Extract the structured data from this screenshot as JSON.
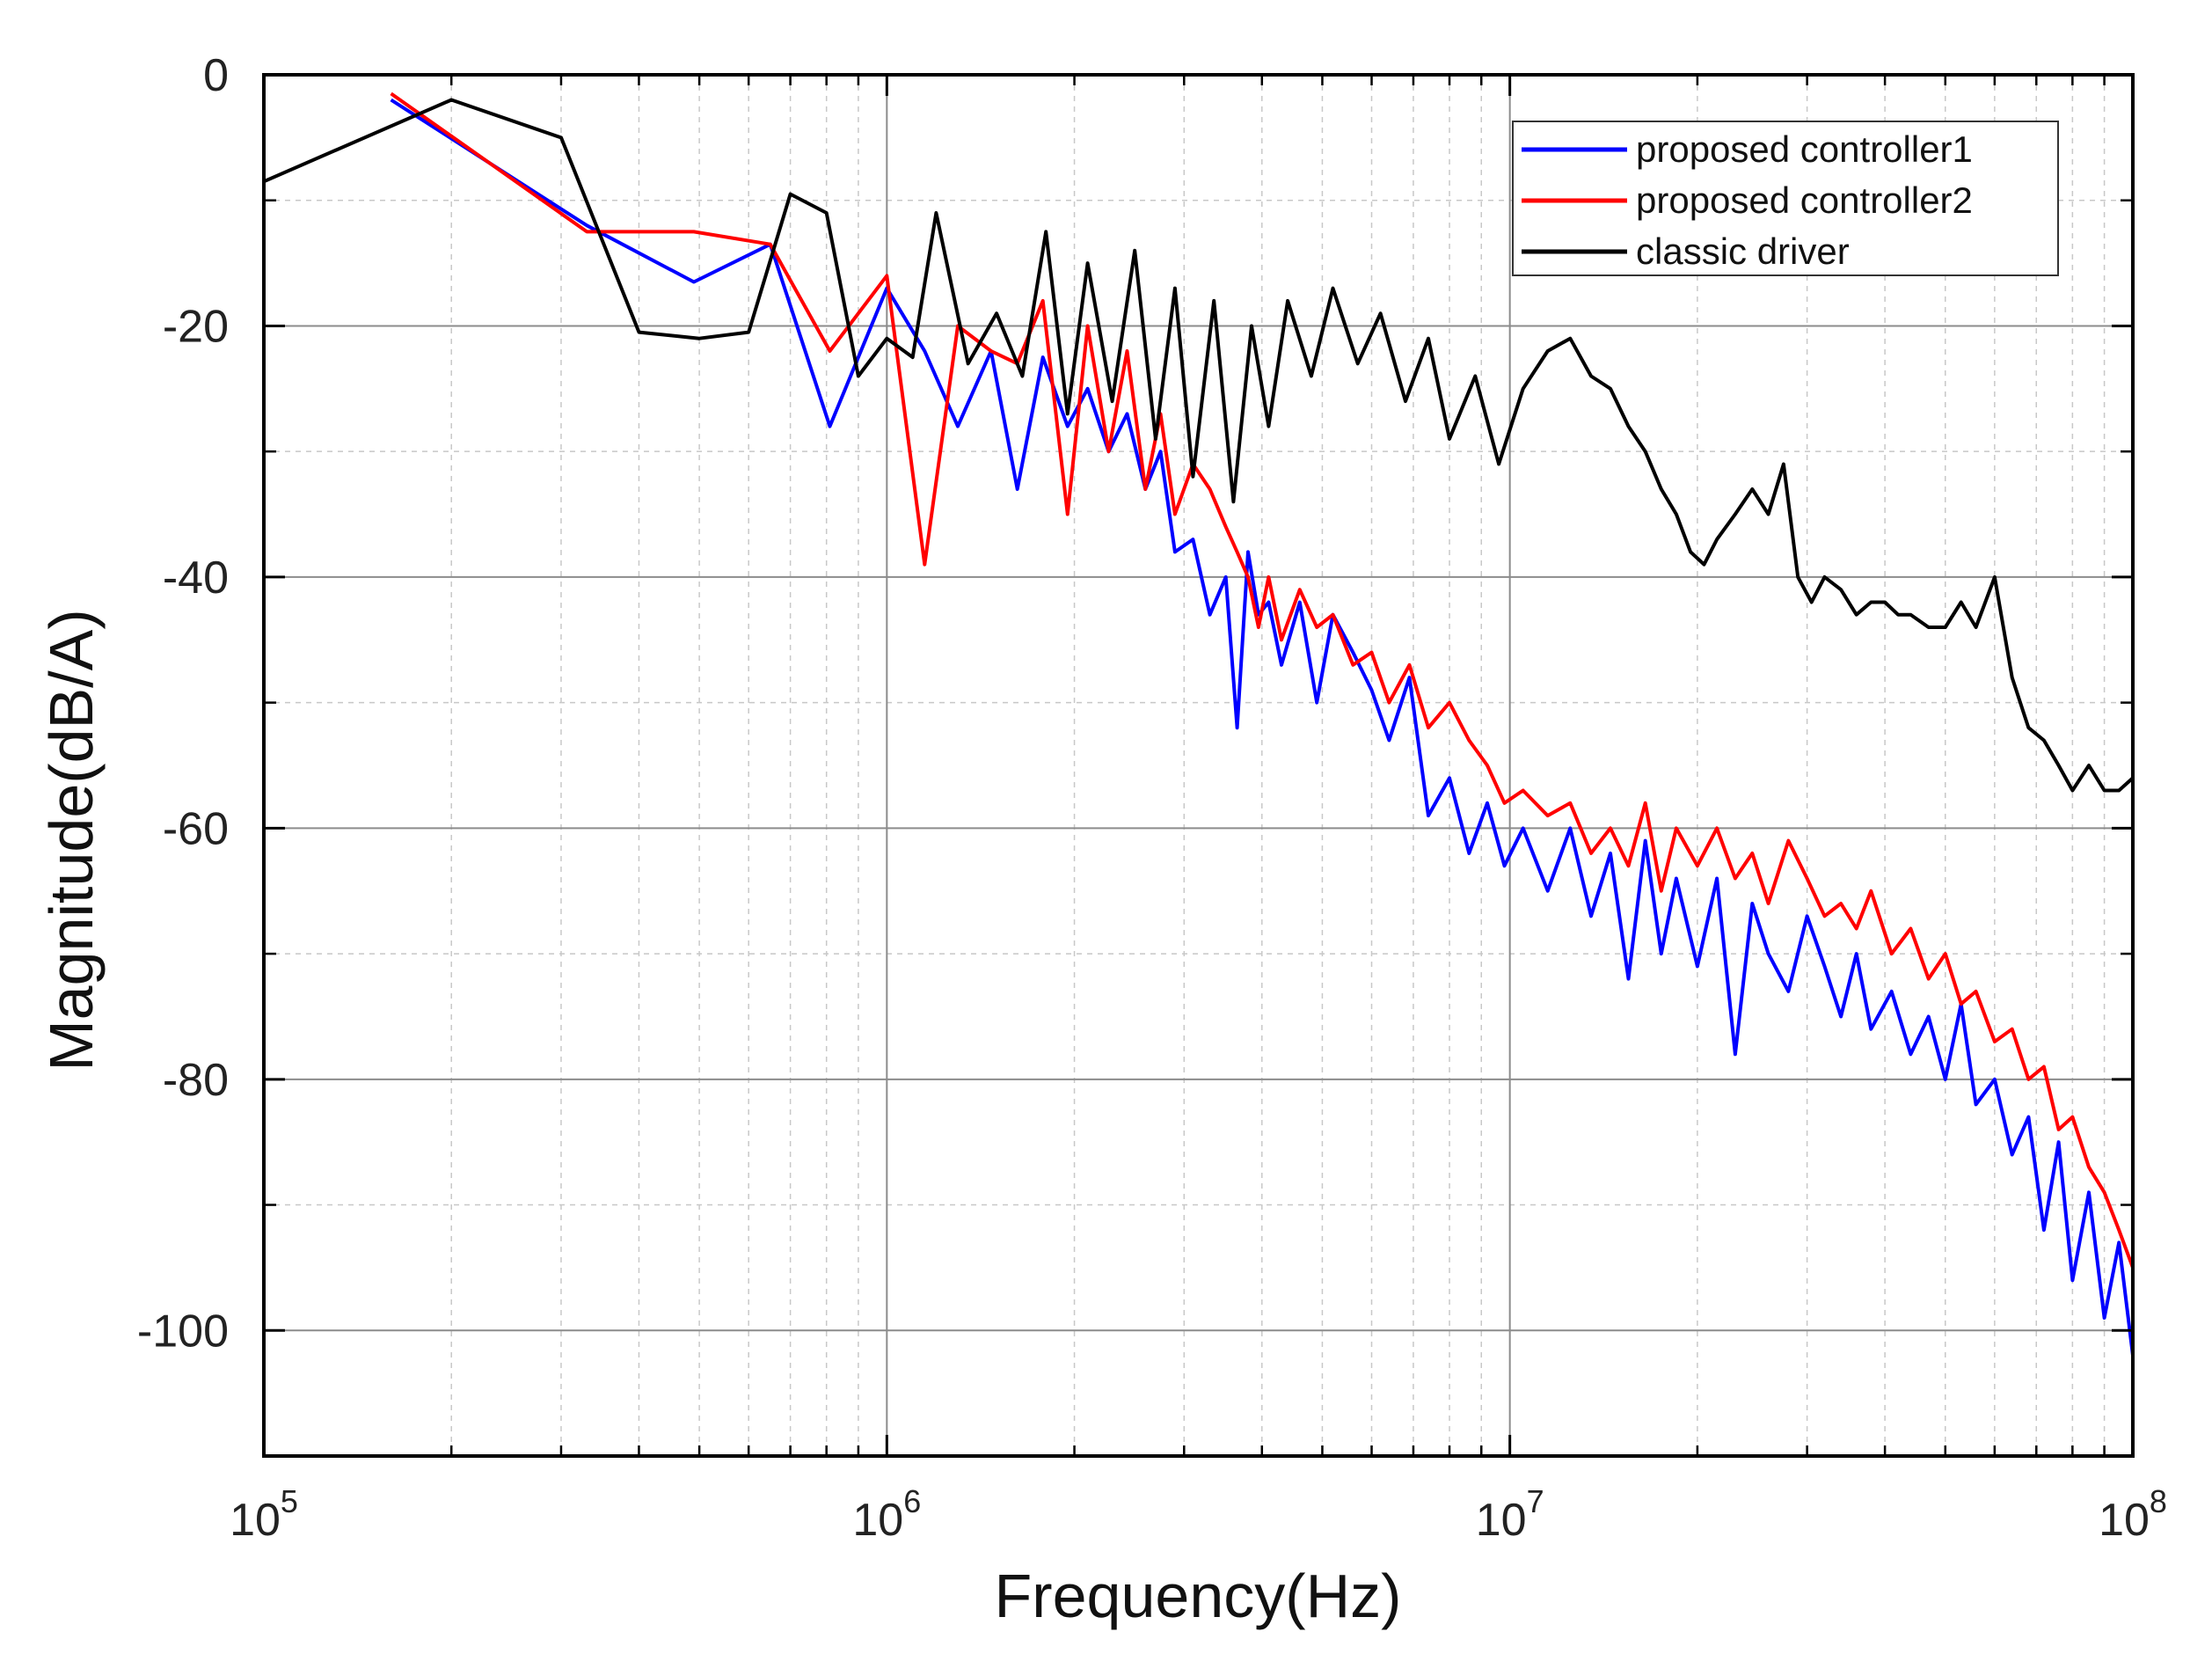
{
  "chart_data": {
    "type": "line",
    "title": "",
    "xlabel": "Frequency(Hz)",
    "ylabel": "Magnitude(dB/A)",
    "xscale": "log",
    "xlim": [
      100000,
      100000000
    ],
    "ylim": [
      -110,
      0
    ],
    "x_ticks": [
      {
        "value": 100000,
        "base": "10",
        "exp": "5"
      },
      {
        "value": 1000000,
        "base": "10",
        "exp": "6"
      },
      {
        "value": 10000000,
        "base": "10",
        "exp": "7"
      },
      {
        "value": 100000000,
        "base": "10",
        "exp": "8"
      }
    ],
    "y_ticks": [
      {
        "value": 0,
        "label": "0"
      },
      {
        "value": -20,
        "label": "-20"
      },
      {
        "value": -40,
        "label": "-40"
      },
      {
        "value": -60,
        "label": "-60"
      },
      {
        "value": -80,
        "label": "-80"
      },
      {
        "value": -100,
        "label": "-100"
      }
    ],
    "grid": true,
    "legend_position": "top-right",
    "series": [
      {
        "name": "proposed controller1",
        "color": "#0000ff",
        "x": [
          160000,
          330000,
          490000,
          650000,
          810000,
          1000000,
          1150000,
          1300000,
          1470000,
          1620000,
          1780000,
          1950000,
          2100000,
          2270000,
          2430000,
          2600000,
          2750000,
          2900000,
          3100000,
          3300000,
          3500000,
          3650000,
          3800000,
          3950000,
          4100000,
          4300000,
          4600000,
          4900000,
          5200000,
          5600000,
          6000000,
          6400000,
          6900000,
          7400000,
          8000000,
          8600000,
          9200000,
          9800000,
          10500000,
          11500000,
          12500000,
          13500000,
          14500000,
          15500000,
          16500000,
          17500000,
          18500000,
          20000000,
          21500000,
          23000000,
          24500000,
          26000000,
          28000000,
          30000000,
          32000000,
          34000000,
          36000000,
          38000000,
          41000000,
          44000000,
          47000000,
          50000000,
          53000000,
          56000000,
          60000000,
          64000000,
          68000000,
          72000000,
          76000000,
          80000000,
          85000000,
          90000000,
          95000000,
          100000000
        ],
        "y": [
          -2,
          -12,
          -16.5,
          -13.5,
          -28,
          -17,
          -22,
          -28,
          -22,
          -33,
          -22.5,
          -28,
          -25,
          -30,
          -27,
          -33,
          -30,
          -38,
          -37,
          -43,
          -40,
          -52,
          -38,
          -43,
          -42,
          -47,
          -42,
          -50,
          -43,
          -46,
          -49,
          -53,
          -48,
          -59,
          -56,
          -62,
          -58,
          -63,
          -60,
          -65,
          -60,
          -67,
          -62,
          -72,
          -61,
          -70,
          -64,
          -71,
          -64,
          -78,
          -66,
          -70,
          -73,
          -67,
          -71,
          -75,
          -70,
          -76,
          -73,
          -78,
          -75,
          -80,
          -74,
          -82,
          -80,
          -86,
          -83,
          -92,
          -85,
          -96,
          -89,
          -99,
          -93,
          -102
        ]
      },
      {
        "name": "proposed controller2",
        "color": "#ff0000",
        "x": [
          160000,
          330000,
          490000,
          650000,
          810000,
          1000000,
          1150000,
          1300000,
          1470000,
          1620000,
          1780000,
          1950000,
          2100000,
          2270000,
          2430000,
          2600000,
          2750000,
          2900000,
          3100000,
          3300000,
          3500000,
          3650000,
          3800000,
          3950000,
          4100000,
          4300000,
          4600000,
          4900000,
          5200000,
          5600000,
          6000000,
          6400000,
          6900000,
          7400000,
          8000000,
          8600000,
          9200000,
          9800000,
          10500000,
          11500000,
          12500000,
          13500000,
          14500000,
          15500000,
          16500000,
          17500000,
          18500000,
          20000000,
          21500000,
          23000000,
          24500000,
          26000000,
          28000000,
          30000000,
          32000000,
          34000000,
          36000000,
          38000000,
          41000000,
          44000000,
          47000000,
          50000000,
          53000000,
          56000000,
          60000000,
          64000000,
          68000000,
          72000000,
          76000000,
          80000000,
          85000000,
          90000000,
          95000000,
          100000000
        ],
        "y": [
          -1.5,
          -12.5,
          -12.5,
          -13.5,
          -22,
          -16,
          -39,
          -20,
          -22,
          -23,
          -18,
          -35,
          -20,
          -30,
          -22,
          -33,
          -27,
          -35,
          -31,
          -33,
          -36,
          -38,
          -40,
          -44,
          -40,
          -45,
          -41,
          -44,
          -43,
          -47,
          -46,
          -50,
          -47,
          -52,
          -50,
          -53,
          -55,
          -58,
          -57,
          -59,
          -58,
          -62,
          -60,
          -63,
          -58,
          -65,
          -60,
          -63,
          -60,
          -64,
          -62,
          -66,
          -61,
          -64,
          -67,
          -66,
          -68,
          -65,
          -70,
          -68,
          -72,
          -70,
          -74,
          -73,
          -77,
          -76,
          -80,
          -79,
          -84,
          -83,
          -87,
          -89,
          -92,
          -95
        ]
      },
      {
        "name": "classic driver",
        "color": "#000000",
        "x": [
          100000,
          200000,
          300000,
          400000,
          500000,
          600000,
          700000,
          800000,
          900000,
          1000000,
          1100000,
          1200000,
          1350000,
          1500000,
          1650000,
          1800000,
          1950000,
          2100000,
          2300000,
          2500000,
          2700000,
          2900000,
          3100000,
          3350000,
          3600000,
          3850000,
          4100000,
          4400000,
          4800000,
          5200000,
          5700000,
          6200000,
          6800000,
          7400000,
          8000000,
          8800000,
          9600000,
          10500000,
          11500000,
          12500000,
          13500000,
          14500000,
          15500000,
          16500000,
          17500000,
          18500000,
          19500000,
          20500000,
          21500000,
          23000000,
          24500000,
          26000000,
          27500000,
          29000000,
          30500000,
          32000000,
          34000000,
          36000000,
          38000000,
          40000000,
          42000000,
          44000000,
          47000000,
          50000000,
          53000000,
          56000000,
          60000000,
          64000000,
          68000000,
          72000000,
          76000000,
          80000000,
          85000000,
          90000000,
          95000000,
          100000000
        ],
        "y": [
          -8.5,
          -2,
          -5,
          -20.5,
          -21,
          -20.5,
          -9.5,
          -11,
          -24,
          -21,
          -22.5,
          -11,
          -23,
          -19,
          -24,
          -12.5,
          -27,
          -15,
          -26,
          -14,
          -29,
          -17,
          -32,
          -18,
          -34,
          -20,
          -28,
          -18,
          -24,
          -17,
          -23,
          -19,
          -26,
          -21,
          -29,
          -24,
          -31,
          -25,
          -22,
          -21,
          -24,
          -25,
          -28,
          -30,
          -33,
          -35,
          -38,
          -39,
          -37,
          -35,
          -33,
          -35,
          -31,
          -40,
          -42,
          -40,
          -41,
          -43,
          -42,
          -42,
          -43,
          -43,
          -44,
          -44,
          -42,
          -44,
          -40,
          -48,
          -52,
          -53,
          -55,
          -57,
          -55,
          -57,
          -57,
          -56
        ]
      }
    ]
  }
}
